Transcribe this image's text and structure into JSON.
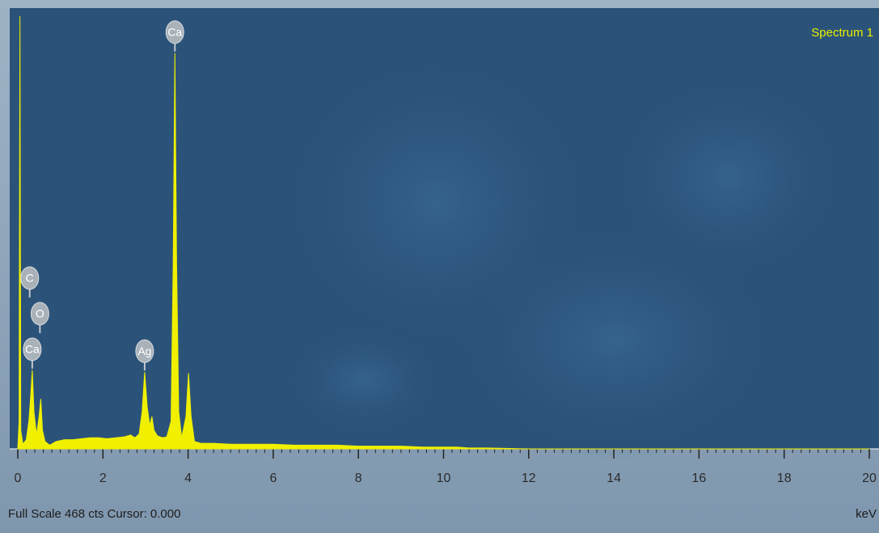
{
  "chart_data": {
    "type": "area",
    "title": "Spectrum 1",
    "footer": "Full Scale 468 cts Cursor: 0.000",
    "x_label": "keV",
    "color": "#f0f000",
    "xlim": [
      0,
      20
    ],
    "xticks": [
      0,
      2,
      4,
      6,
      8,
      10,
      12,
      14,
      16,
      18,
      20
    ],
    "ylim": [
      0,
      468
    ],
    "x": [
      0,
      0.03,
      0.05,
      0.07,
      0.12,
      0.2,
      0.26,
      0.3,
      0.34,
      0.38,
      0.44,
      0.5,
      0.54,
      0.58,
      0.64,
      0.75,
      0.9,
      1.1,
      1.3,
      1.5,
      1.7,
      1.9,
      2.1,
      2.3,
      2.5,
      2.65,
      2.75,
      2.85,
      2.92,
      2.98,
      3.04,
      3.1,
      3.15,
      3.2,
      3.28,
      3.4,
      3.5,
      3.6,
      3.65,
      3.69,
      3.73,
      3.78,
      3.85,
      3.95,
      4.01,
      4.07,
      4.15,
      4.3,
      4.6,
      5,
      5.5,
      6,
      6.5,
      7,
      7.5,
      8,
      8.5,
      9,
      9.5,
      10,
      10.3,
      10.6,
      11,
      12,
      14,
      20
    ],
    "values": [
      0,
      30,
      468,
      20,
      5,
      10,
      30,
      55,
      85,
      40,
      15,
      35,
      54,
      20,
      8,
      4,
      8,
      10,
      10,
      11,
      12,
      12,
      11,
      12,
      13,
      15,
      12,
      16,
      40,
      83,
      45,
      25,
      35,
      20,
      14,
      12,
      13,
      30,
      200,
      428,
      200,
      40,
      12,
      35,
      82,
      35,
      8,
      6,
      6,
      5,
      5,
      5,
      4,
      4,
      4,
      3,
      3,
      3,
      2,
      2,
      2,
      1,
      1,
      0,
      0,
      0
    ],
    "annotations": [
      {
        "label": "Ca",
        "x": 0.34
      },
      {
        "label": "O",
        "x": 0.52
      },
      {
        "label": "C",
        "x": 0.28
      },
      {
        "label": "Ag",
        "x": 2.98
      },
      {
        "label": "Ca",
        "x": 3.69
      }
    ]
  }
}
